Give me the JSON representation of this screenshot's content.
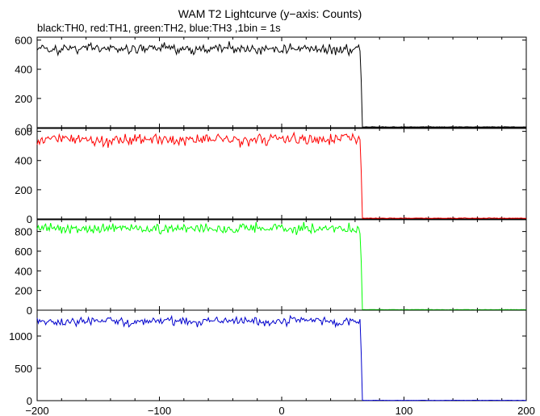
{
  "title": "WAM T2 Lightcurve (y−axis: Counts)",
  "subtitle": "black:TH0, red:TH1, green:TH2, blue:TH3 ,1bin = 1s",
  "chart_data": {
    "type": "line",
    "title": "WAM T2 Lightcurve (y−axis: Counts)",
    "subtitle": "black:TH0, red:TH1, green:TH2, blue:TH3 ,1bin = 1s",
    "xlabel": "",
    "ylabel": "",
    "xlim": [
      -200,
      200
    ],
    "x_ticks": [
      -200,
      -100,
      0,
      100,
      200
    ],
    "x_tick_labels": [
      "−200",
      "−100",
      "0",
      "100",
      "200"
    ],
    "bin_seconds": 1,
    "drop_time": 65,
    "panels": [
      {
        "series_name": "TH0",
        "color": "#000000",
        "ylim": [
          0,
          620
        ],
        "y_ticks": [
          0,
          200,
          400,
          600
        ],
        "y_tick_labels": [
          "0",
          "200",
          "400",
          "600"
        ],
        "level_before": 540,
        "noise": 18,
        "level_after": 5
      },
      {
        "series_name": "TH1",
        "color": "#ff0000",
        "ylim": [
          0,
          620
        ],
        "y_ticks": [
          0,
          200,
          400,
          600
        ],
        "y_tick_labels": [
          "0",
          "200",
          "400",
          "600"
        ],
        "level_before": 545,
        "noise": 18,
        "level_after": 5
      },
      {
        "series_name": "TH2",
        "color": "#00ff00",
        "ylim": [
          0,
          920
        ],
        "y_ticks": [
          0,
          200,
          400,
          600,
          800
        ],
        "y_tick_labels": [
          "0",
          "200",
          "400",
          "600",
          "800"
        ],
        "level_before": 830,
        "noise": 25,
        "level_after": 5
      },
      {
        "series_name": "TH3",
        "color": "#0000cc",
        "ylim": [
          0,
          1400
        ],
        "y_ticks": [
          0,
          500,
          1000
        ],
        "y_tick_labels": [
          "0",
          "500",
          "1000"
        ],
        "level_before": 1230,
        "noise": 35,
        "level_after": 5
      }
    ]
  }
}
